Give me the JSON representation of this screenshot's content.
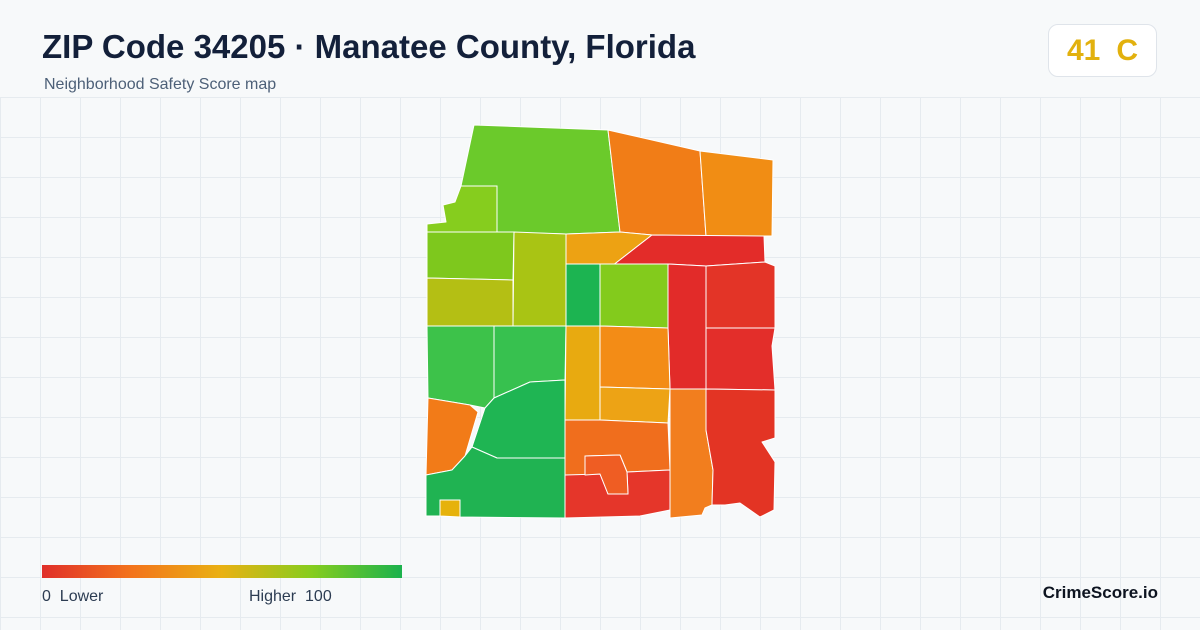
{
  "header": {
    "title": "ZIP Code 34205 · Manatee County, Florida",
    "subtitle": "Neighborhood Safety Score map"
  },
  "score": {
    "value": "41",
    "grade": "C",
    "color": "#e2b10e"
  },
  "legend": {
    "low_value": "0",
    "low_label": "Lower",
    "high_label": "Higher",
    "high_value": "100",
    "colors": [
      "#e02f2a",
      "#f3741c",
      "#e9b113",
      "#86cd1e",
      "#1bb24d"
    ]
  },
  "brand": "CrimeScore.io",
  "map_regions": [
    {
      "id": "north-large",
      "color": "#6bca2b"
    },
    {
      "id": "northwest-notch",
      "color": "#86cd1e"
    },
    {
      "id": "northeast-1",
      "color": "#f17d17"
    },
    {
      "id": "northeast-2",
      "color": "#f18d14"
    },
    {
      "id": "west-1",
      "color": "#7ec81d"
    },
    {
      "id": "west-2",
      "color": "#b4bf14"
    },
    {
      "id": "center-west",
      "color": "#a9c414"
    },
    {
      "id": "north-center",
      "color": "#eda213"
    },
    {
      "id": "east-top",
      "color": "#e32c29"
    },
    {
      "id": "center-green",
      "color": "#1cb451"
    },
    {
      "id": "center-lime",
      "color": "#83cb1c"
    },
    {
      "id": "strip-red",
      "color": "#e22b29"
    },
    {
      "id": "east-1",
      "color": "#e33427"
    },
    {
      "id": "east-2",
      "color": "#e32e2a"
    },
    {
      "id": "west-3",
      "color": "#3dc24a"
    },
    {
      "id": "west-4",
      "color": "#37c14f"
    },
    {
      "id": "center-yellow",
      "color": "#e8aa10"
    },
    {
      "id": "center-orange",
      "color": "#f38c16"
    },
    {
      "id": "center-orange-2",
      "color": "#eda315"
    },
    {
      "id": "west-orange",
      "color": "#f27b18"
    },
    {
      "id": "south-green",
      "color": "#1fb553"
    },
    {
      "id": "southwest-green",
      "color": "#20b352"
    },
    {
      "id": "south-orange",
      "color": "#f06e1d"
    },
    {
      "id": "south-red",
      "color": "#e5362a"
    },
    {
      "id": "inner-orange",
      "color": "#ef5d23"
    },
    {
      "id": "southeast-orange",
      "color": "#f27e1e"
    },
    {
      "id": "east-3",
      "color": "#e33424"
    },
    {
      "id": "small-yellow",
      "color": "#e6b20b"
    }
  ]
}
